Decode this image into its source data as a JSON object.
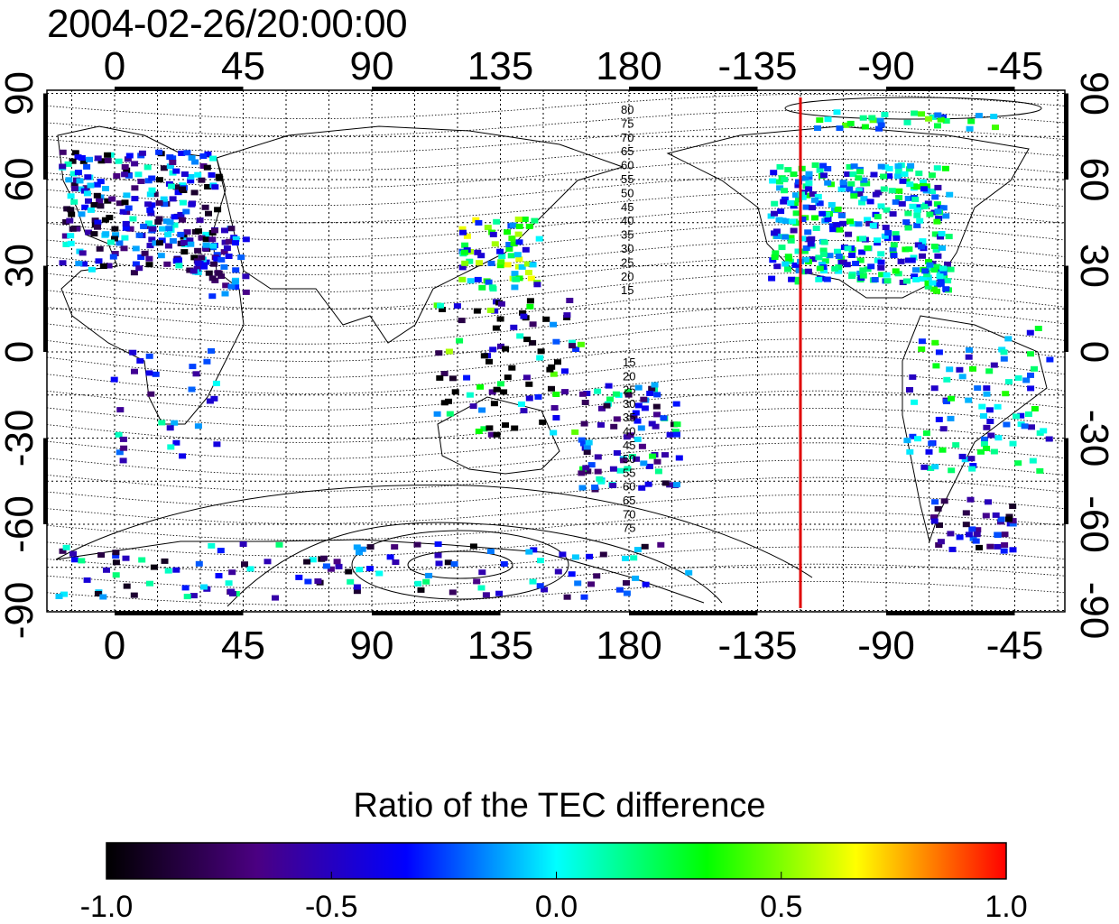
{
  "title": "2004-02-26/20:00:00",
  "map": {
    "lon_ticks": [
      "0",
      "45",
      "90",
      "135",
      "180",
      "-135",
      "-90",
      "-45"
    ],
    "lat_ticks": [
      "90",
      "60",
      "30",
      "0",
      "-30",
      "-60",
      "-90"
    ],
    "marker_longitude": -120,
    "marker_color": "#e00000",
    "contour_labels_north": [
      "80",
      "75",
      "70",
      "65",
      "60",
      "55",
      "50",
      "45",
      "40",
      "35",
      "30",
      "25",
      "20",
      "15"
    ],
    "contour_labels_south": [
      "15",
      "20",
      "25",
      "30",
      "35",
      "40",
      "45",
      "50",
      "55",
      "60",
      "65",
      "70",
      "75"
    ]
  },
  "colorbar": {
    "title": "Ratio of the TEC difference",
    "tick_labels": [
      "-1.0",
      "-0.5",
      "0.0",
      "0.5",
      "1.0"
    ],
    "range": [
      -1.0,
      1.0
    ],
    "colors": [
      "#000000",
      "#4b0082",
      "#0000ff",
      "#00ffff",
      "#00ff00",
      "#ffff00",
      "#ff0000"
    ]
  }
}
